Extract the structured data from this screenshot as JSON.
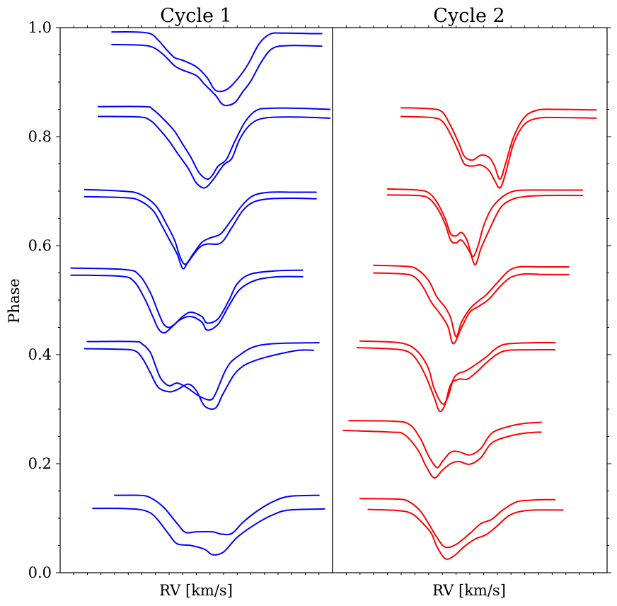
{
  "chart_data": [
    {
      "type": "line",
      "panel": "left",
      "title": "Cycle 1",
      "xlabel": "RV [km/s]",
      "ylabel": "Phase",
      "ylim": [
        0,
        1.0
      ],
      "yticks": [
        "0.0",
        "0.2",
        "0.4",
        "0.6",
        "0.8",
        "1.0"
      ],
      "color": "#0000ff",
      "series": [
        {
          "x": [
            0.2,
            0.29,
            0.33,
            0.38,
            0.43,
            0.46,
            0.5,
            0.56,
            0.59,
            0.63,
            0.67,
            0.72,
            0.78,
            0.84,
            0.95
          ],
          "y": [
            0.142,
            0.142,
            0.138,
            0.12,
            0.09,
            0.074,
            0.075,
            0.075,
            0.071,
            0.072,
            0.092,
            0.112,
            0.13,
            0.14,
            0.142
          ]
        },
        {
          "x": [
            0.12,
            0.21,
            0.29,
            0.33,
            0.36,
            0.4,
            0.43,
            0.48,
            0.53,
            0.56,
            0.6,
            0.65,
            0.72,
            0.78,
            0.84,
            0.97
          ],
          "y": [
            0.118,
            0.118,
            0.116,
            0.11,
            0.096,
            0.07,
            0.053,
            0.05,
            0.043,
            0.033,
            0.038,
            0.065,
            0.09,
            0.106,
            0.115,
            0.117
          ]
        },
        {
          "x": [
            0.1,
            0.27,
            0.3,
            0.33,
            0.35,
            0.37,
            0.4,
            0.43,
            0.47,
            0.51,
            0.55,
            0.57,
            0.61,
            0.65,
            0.74,
            0.95
          ],
          "y": [
            0.424,
            0.424,
            0.42,
            0.405,
            0.38,
            0.356,
            0.343,
            0.348,
            0.338,
            0.324,
            0.317,
            0.328,
            0.374,
            0.396,
            0.418,
            0.422
          ]
        },
        {
          "x": [
            0.09,
            0.21,
            0.27,
            0.3,
            0.33,
            0.36,
            0.4,
            0.43,
            0.47,
            0.5,
            0.53,
            0.57,
            0.6,
            0.65,
            0.72,
            0.86,
            0.93
          ],
          "y": [
            0.411,
            0.41,
            0.408,
            0.395,
            0.368,
            0.34,
            0.332,
            0.336,
            0.346,
            0.334,
            0.306,
            0.302,
            0.33,
            0.37,
            0.39,
            0.407,
            0.408
          ]
        },
        {
          "x": [
            0.04,
            0.24,
            0.29,
            0.33,
            0.36,
            0.38,
            0.4,
            0.42,
            0.45,
            0.48,
            0.52,
            0.54,
            0.58,
            0.62,
            0.65,
            0.7,
            0.8,
            0.89
          ],
          "y": [
            0.559,
            0.556,
            0.546,
            0.515,
            0.478,
            0.456,
            0.45,
            0.456,
            0.47,
            0.478,
            0.47,
            0.458,
            0.466,
            0.5,
            0.53,
            0.548,
            0.554,
            0.555
          ]
        },
        {
          "x": [
            0.04,
            0.22,
            0.27,
            0.31,
            0.34,
            0.36,
            0.38,
            0.4,
            0.44,
            0.48,
            0.52,
            0.54,
            0.58,
            0.62,
            0.66,
            0.72,
            0.8,
            0.89
          ],
          "y": [
            0.546,
            0.544,
            0.535,
            0.503,
            0.47,
            0.448,
            0.44,
            0.446,
            0.464,
            0.47,
            0.46,
            0.445,
            0.456,
            0.49,
            0.52,
            0.537,
            0.543,
            0.543
          ]
        },
        {
          "x": [
            0.09,
            0.23,
            0.29,
            0.35,
            0.39,
            0.42,
            0.44,
            0.46,
            0.49,
            0.52,
            0.55,
            0.59,
            0.63,
            0.67,
            0.71,
            0.77,
            0.86,
            0.94
          ],
          "y": [
            0.703,
            0.7,
            0.695,
            0.674,
            0.64,
            0.61,
            0.58,
            0.566,
            0.586,
            0.606,
            0.614,
            0.622,
            0.648,
            0.675,
            0.692,
            0.698,
            0.698,
            0.698
          ]
        },
        {
          "x": [
            0.09,
            0.24,
            0.29,
            0.34,
            0.37,
            0.4,
            0.43,
            0.45,
            0.47,
            0.51,
            0.54,
            0.59,
            0.63,
            0.67,
            0.71,
            0.77,
            0.86,
            0.94
          ],
          "y": [
            0.69,
            0.688,
            0.683,
            0.665,
            0.64,
            0.612,
            0.584,
            0.558,
            0.57,
            0.596,
            0.603,
            0.605,
            0.633,
            0.664,
            0.68,
            0.686,
            0.687,
            0.686
          ]
        },
        {
          "x": [
            0.14,
            0.31,
            0.34,
            0.38,
            0.42,
            0.45,
            0.48,
            0.51,
            0.54,
            0.56,
            0.58,
            0.61,
            0.64,
            0.68,
            0.72,
            0.77,
            0.88,
            0.99
          ],
          "y": [
            0.855,
            0.855,
            0.85,
            0.832,
            0.81,
            0.786,
            0.762,
            0.734,
            0.722,
            0.73,
            0.746,
            0.758,
            0.79,
            0.828,
            0.848,
            0.852,
            0.852,
            0.85
          ]
        },
        {
          "x": [
            0.14,
            0.29,
            0.33,
            0.36,
            0.4,
            0.43,
            0.47,
            0.5,
            0.53,
            0.56,
            0.6,
            0.63,
            0.66,
            0.7,
            0.75,
            0.85,
            0.99
          ],
          "y": [
            0.837,
            0.836,
            0.83,
            0.816,
            0.792,
            0.77,
            0.742,
            0.715,
            0.706,
            0.72,
            0.748,
            0.76,
            0.796,
            0.823,
            0.834,
            0.836,
            0.834
          ]
        },
        {
          "x": [
            0.19,
            0.27,
            0.33,
            0.36,
            0.39,
            0.42,
            0.45,
            0.5,
            0.54,
            0.57,
            0.61,
            0.65,
            0.69,
            0.73,
            0.77,
            0.82,
            0.92,
            0.96
          ],
          "y": [
            0.992,
            0.992,
            0.989,
            0.977,
            0.96,
            0.945,
            0.94,
            0.928,
            0.908,
            0.885,
            0.886,
            0.905,
            0.933,
            0.97,
            0.988,
            0.99,
            0.989,
            0.989
          ]
        },
        {
          "x": [
            0.19,
            0.29,
            0.34,
            0.38,
            0.42,
            0.45,
            0.5,
            0.53,
            0.57,
            0.6,
            0.64,
            0.67,
            0.7,
            0.74,
            0.78,
            0.84,
            0.96
          ],
          "y": [
            0.969,
            0.968,
            0.964,
            0.95,
            0.93,
            0.922,
            0.912,
            0.896,
            0.876,
            0.858,
            0.862,
            0.882,
            0.902,
            0.938,
            0.962,
            0.967,
            0.966
          ]
        }
      ]
    },
    {
      "type": "line",
      "panel": "right",
      "title": "Cycle 2",
      "xlabel": "RV [km/s]",
      "ylim": [
        0,
        1.0
      ],
      "color": "#ff0000",
      "series": [
        {
          "x": [
            0.1,
            0.24,
            0.28,
            0.32,
            0.35,
            0.38,
            0.41,
            0.45,
            0.5,
            0.54,
            0.58,
            0.62,
            0.67,
            0.72,
            0.76,
            0.81
          ],
          "y": [
            0.136,
            0.135,
            0.13,
            0.113,
            0.09,
            0.065,
            0.047,
            0.052,
            0.072,
            0.09,
            0.098,
            0.115,
            0.13,
            0.133,
            0.134,
            0.134
          ]
        },
        {
          "x": [
            0.13,
            0.24,
            0.29,
            0.33,
            0.36,
            0.38,
            0.41,
            0.44,
            0.48,
            0.52,
            0.56,
            0.6,
            0.64,
            0.68,
            0.73,
            0.84
          ],
          "y": [
            0.116,
            0.114,
            0.108,
            0.09,
            0.072,
            0.048,
            0.026,
            0.03,
            0.048,
            0.062,
            0.07,
            0.086,
            0.104,
            0.112,
            0.115,
            0.115
          ]
        },
        {
          "x": [
            0.06,
            0.22,
            0.28,
            0.32,
            0.35,
            0.38,
            0.4,
            0.43,
            0.46,
            0.5,
            0.54,
            0.58,
            0.64,
            0.7,
            0.76
          ],
          "y": [
            0.279,
            0.278,
            0.272,
            0.246,
            0.214,
            0.193,
            0.204,
            0.221,
            0.222,
            0.216,
            0.228,
            0.256,
            0.268,
            0.274,
            0.276
          ]
        },
        {
          "x": [
            0.04,
            0.21,
            0.26,
            0.31,
            0.34,
            0.37,
            0.4,
            0.43,
            0.46,
            0.5,
            0.54,
            0.58,
            0.64,
            0.7,
            0.76
          ],
          "y": [
            0.261,
            0.258,
            0.254,
            0.226,
            0.196,
            0.174,
            0.188,
            0.2,
            0.204,
            0.199,
            0.211,
            0.238,
            0.25,
            0.256,
            0.258
          ]
        },
        {
          "x": [
            0.1,
            0.22,
            0.28,
            0.32,
            0.35,
            0.37,
            0.4,
            0.42,
            0.44,
            0.46,
            0.48,
            0.51,
            0.56,
            0.6,
            0.64,
            0.74,
            0.81
          ],
          "y": [
            0.425,
            0.423,
            0.417,
            0.4,
            0.374,
            0.338,
            0.31,
            0.322,
            0.355,
            0.366,
            0.369,
            0.378,
            0.396,
            0.413,
            0.42,
            0.422,
            0.422
          ]
        },
        {
          "x": [
            0.09,
            0.23,
            0.28,
            0.31,
            0.34,
            0.37,
            0.39,
            0.41,
            0.43,
            0.46,
            0.49,
            0.52,
            0.56,
            0.6,
            0.64,
            0.73,
            0.81
          ],
          "y": [
            0.413,
            0.41,
            0.404,
            0.388,
            0.36,
            0.322,
            0.296,
            0.309,
            0.345,
            0.355,
            0.355,
            0.366,
            0.385,
            0.401,
            0.408,
            0.409,
            0.409
          ]
        },
        {
          "x": [
            0.15,
            0.27,
            0.31,
            0.35,
            0.38,
            0.41,
            0.43,
            0.45,
            0.47,
            0.5,
            0.53,
            0.56,
            0.6,
            0.64,
            0.68,
            0.76,
            0.86
          ],
          "y": [
            0.564,
            0.562,
            0.556,
            0.536,
            0.506,
            0.487,
            0.468,
            0.433,
            0.46,
            0.484,
            0.498,
            0.51,
            0.532,
            0.553,
            0.561,
            0.561,
            0.561
          ]
        },
        {
          "x": [
            0.15,
            0.26,
            0.3,
            0.33,
            0.36,
            0.39,
            0.42,
            0.44,
            0.47,
            0.5,
            0.53,
            0.57,
            0.61,
            0.65,
            0.7,
            0.77,
            0.86
          ],
          "y": [
            0.55,
            0.548,
            0.542,
            0.524,
            0.496,
            0.476,
            0.452,
            0.42,
            0.45,
            0.478,
            0.488,
            0.502,
            0.525,
            0.542,
            0.548,
            0.547,
            0.547
          ]
        },
        {
          "x": [
            0.2,
            0.31,
            0.35,
            0.38,
            0.41,
            0.43,
            0.45,
            0.47,
            0.49,
            0.51,
            0.53,
            0.55,
            0.58,
            0.62,
            0.66,
            0.71,
            0.79,
            0.91
          ],
          "y": [
            0.704,
            0.702,
            0.697,
            0.68,
            0.65,
            0.622,
            0.618,
            0.624,
            0.61,
            0.58,
            0.6,
            0.636,
            0.669,
            0.69,
            0.7,
            0.702,
            0.702,
            0.702
          ]
        },
        {
          "x": [
            0.2,
            0.31,
            0.35,
            0.38,
            0.41,
            0.43,
            0.45,
            0.47,
            0.5,
            0.52,
            0.54,
            0.57,
            0.61,
            0.65,
            0.7,
            0.78,
            0.91
          ],
          "y": [
            0.693,
            0.692,
            0.687,
            0.67,
            0.64,
            0.61,
            0.605,
            0.61,
            0.588,
            0.565,
            0.594,
            0.628,
            0.668,
            0.684,
            0.69,
            0.692,
            0.692
          ]
        },
        {
          "x": [
            0.25,
            0.36,
            0.4,
            0.43,
            0.46,
            0.48,
            0.51,
            0.54,
            0.57,
            0.59,
            0.61,
            0.63,
            0.66,
            0.7,
            0.75,
            0.82,
            0.96
          ],
          "y": [
            0.853,
            0.851,
            0.845,
            0.82,
            0.788,
            0.764,
            0.757,
            0.766,
            0.762,
            0.746,
            0.722,
            0.75,
            0.8,
            0.836,
            0.849,
            0.85,
            0.849
          ]
        },
        {
          "x": [
            0.25,
            0.36,
            0.4,
            0.43,
            0.46,
            0.48,
            0.51,
            0.54,
            0.57,
            0.59,
            0.61,
            0.63,
            0.66,
            0.7,
            0.75,
            0.82,
            0.96
          ],
          "y": [
            0.837,
            0.835,
            0.828,
            0.804,
            0.772,
            0.75,
            0.746,
            0.748,
            0.738,
            0.72,
            0.706,
            0.732,
            0.788,
            0.823,
            0.834,
            0.835,
            0.834
          ]
        }
      ]
    }
  ]
}
